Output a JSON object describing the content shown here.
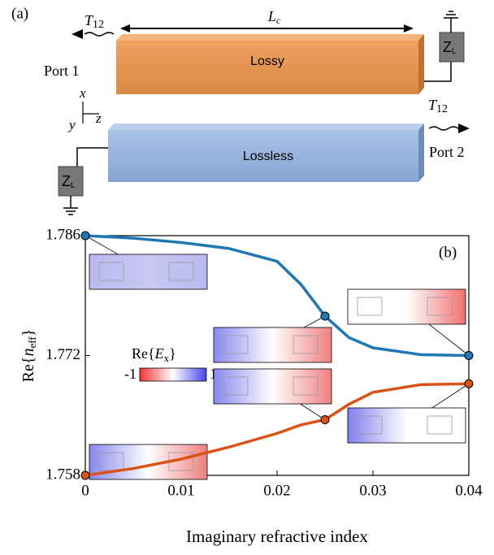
{
  "diagram": {
    "panel_label": "(a)",
    "t12_left": {
      "main": "T",
      "sub": "12"
    },
    "length": {
      "main": "L",
      "sub": "c"
    },
    "port1": "Port 1",
    "lossy": "Lossy",
    "zl_right": {
      "main": "Z",
      "sub": "L"
    },
    "axis_x": "x",
    "axis_y": "y",
    "axis_z": "z",
    "t12_right": {
      "main": "T",
      "sub": "12"
    },
    "port2": "Port 2",
    "lossless": "Lossless",
    "zl_left": {
      "main": "Z",
      "sub": "L"
    }
  },
  "chart_data": {
    "type": "line",
    "panel_label": "(b)",
    "x_label": "Imaginary refractive index",
    "y_label": {
      "prefix": "Re{",
      "var": "n",
      "sub": "eff",
      "suffix": "}"
    },
    "colorbar": {
      "prefix": "Re{",
      "var": "E",
      "sub": "x",
      "suffix": "}",
      "min": "-1",
      "max": "1"
    },
    "x": [
      0,
      0.005,
      0.01,
      0.015,
      0.02,
      0.0225,
      0.025,
      0.0275,
      0.03,
      0.035,
      0.04
    ],
    "series": [
      {
        "color": "#1f77b4",
        "values": [
          1.786,
          1.7857,
          1.7852,
          1.7845,
          1.783,
          1.7803,
          1.7766,
          1.7741,
          1.7729,
          1.7721,
          1.772
        ]
      },
      {
        "color": "#d95319",
        "values": [
          1.758,
          1.7588,
          1.7599,
          1.7613,
          1.7629,
          1.7639,
          1.7645,
          1.7663,
          1.7677,
          1.7686,
          1.7687
        ]
      }
    ],
    "xlim": [
      0,
      0.04
    ],
    "ylim": [
      1.758,
      1.786
    ],
    "xticks": [
      0,
      0.01,
      0.02,
      0.03,
      0.04
    ],
    "yticks": [
      1.758,
      1.772,
      1.786
    ]
  }
}
